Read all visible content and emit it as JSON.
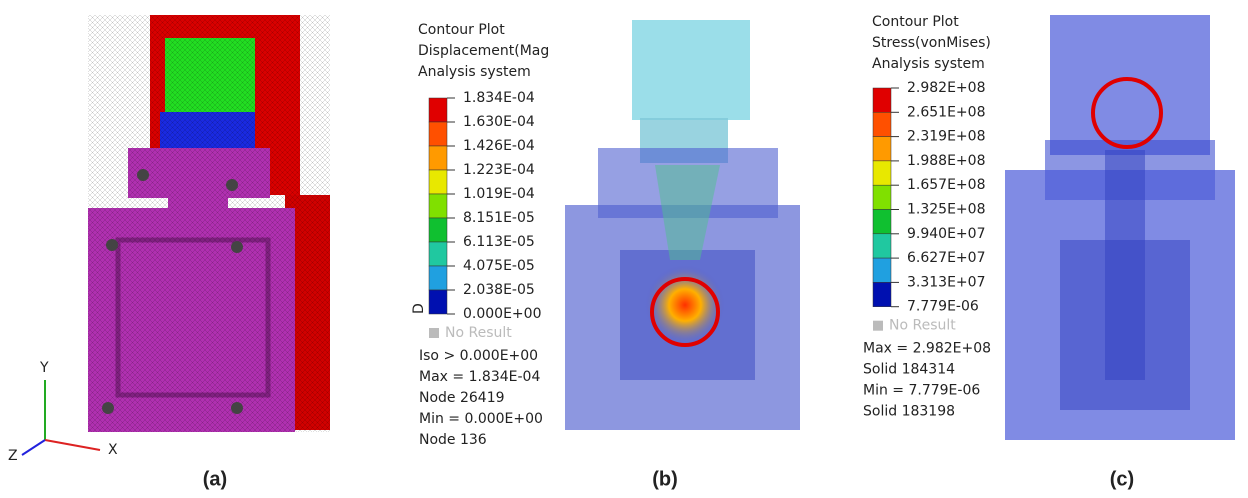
{
  "panels": [
    {
      "caption": "(a)",
      "axes": {
        "y": "Y",
        "z": "Z",
        "x": "X"
      }
    },
    {
      "caption": "(b)",
      "legend": {
        "title": [
          "Contour Plot",
          "Displacement(Mag",
          "Analysis system"
        ],
        "levels": [
          "1.834E-04",
          "1.630E-04",
          "1.426E-04",
          "1.223E-04",
          "1.019E-04",
          "8.151E-05",
          "6.113E-05",
          "4.075E-05",
          "2.038E-05",
          "0.000E+00"
        ],
        "glyph": "D",
        "no_result": "No Result",
        "stats": [
          "Iso > 0.000E+00",
          "Max = 1.834E-04",
          "Node 26419",
          "Min = 0.000E+00",
          "Node 136"
        ]
      }
    },
    {
      "caption": "(c)",
      "legend": {
        "title": [
          "Contour Plot",
          "Stress(vonMises)",
          "Analysis system"
        ],
        "levels": [
          "2.982E+08",
          "2.651E+08",
          "2.319E+08",
          "1.988E+08",
          "1.657E+08",
          "1.325E+08",
          "9.940E+07",
          "6.627E+07",
          "3.313E+07",
          "7.779E-06"
        ],
        "no_result": "No Result",
        "stats": [
          "Max = 2.982E+08",
          "Solid 184314",
          "Min = 7.779E-06",
          "Solid 183198"
        ]
      }
    }
  ]
}
